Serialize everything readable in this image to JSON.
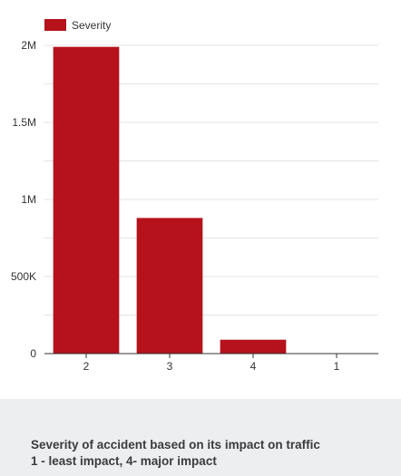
{
  "chart_data": {
    "type": "bar",
    "categories": [
      "2",
      "3",
      "4",
      "1"
    ],
    "series": [
      {
        "name": "Severity",
        "values": [
          1990000,
          880000,
          90000,
          0
        ]
      }
    ],
    "ylim": [
      0,
      2000000
    ],
    "y_ticks": [
      0,
      500000,
      1000000,
      1500000,
      2000000
    ],
    "y_tick_labels": [
      "0",
      "500K",
      "1M",
      "1.5M",
      "2M"
    ],
    "grid": true,
    "legend_position": "top-left",
    "bar_color": "#b5121b"
  },
  "caption": {
    "line1": "Severity of accident based on its impact on traffic",
    "line2": "1 - least impact, 4- major impact"
  },
  "colors": {
    "bar": "#b5121b",
    "grid": "#e3e3e3",
    "axis": "#333333",
    "caption_bg": "#eceef0"
  }
}
